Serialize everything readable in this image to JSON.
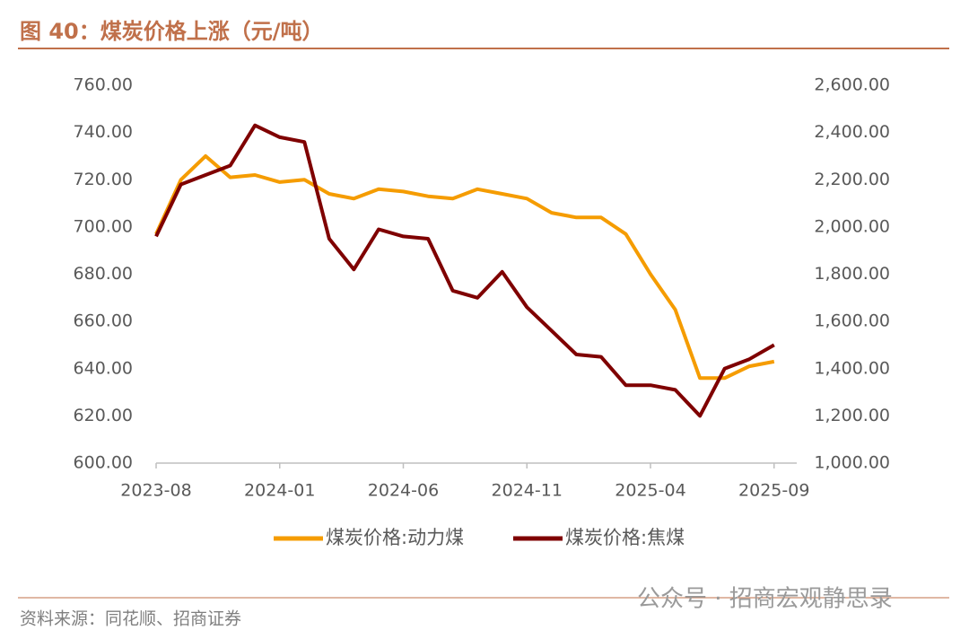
{
  "chart_data": {
    "type": "line",
    "title": "图 40：煤炭价格上涨（元/吨）",
    "source": "资料来源：同花顺、招商证券",
    "watermark": "公众号 · 招商宏观静思录",
    "x": [
      "2023-08",
      "2023-09",
      "2023-10",
      "2023-11",
      "2023-12",
      "2024-01",
      "2024-02",
      "2024-03",
      "2024-04",
      "2024-05",
      "2024-06",
      "2024-07",
      "2024-08",
      "2024-09",
      "2024-10",
      "2024-11",
      "2024-12",
      "2025-01",
      "2025-02",
      "2025-03",
      "2025-04",
      "2025-05",
      "2025-06",
      "2025-07",
      "2025-08",
      "2025-09"
    ],
    "xticks": [
      "2023-08",
      "2024-01",
      "2024-06",
      "2024-11",
      "2025-04",
      "2025-09"
    ],
    "series": [
      {
        "name": "煤炭价格:动力煤",
        "color": "#f59c00",
        "axis": "y",
        "values": [
          697,
          720,
          730,
          721,
          722,
          719,
          720,
          714,
          712,
          716,
          715,
          713,
          712,
          716,
          714,
          712,
          706,
          704,
          704,
          697,
          680,
          665,
          636,
          636,
          641,
          643
        ]
      },
      {
        "name": "煤炭价格:焦煤",
        "color": "#7f0000",
        "axis": "y2",
        "values": [
          1960,
          2180,
          2220,
          2260,
          2430,
          2380,
          2360,
          1950,
          1820,
          1990,
          1960,
          1950,
          1730,
          1700,
          1810,
          1660,
          1560,
          1460,
          1450,
          1330,
          1330,
          1310,
          1200,
          1400,
          1440,
          1500
        ]
      }
    ],
    "ylim": [
      600,
      760
    ],
    "yticks": [
      {
        "value": 600,
        "label": "600.00"
      },
      {
        "value": 620,
        "label": "620.00"
      },
      {
        "value": 640,
        "label": "640.00"
      },
      {
        "value": 660,
        "label": "660.00"
      },
      {
        "value": 680,
        "label": "680.00"
      },
      {
        "value": 700,
        "label": "700.00"
      },
      {
        "value": 720,
        "label": "720.00"
      },
      {
        "value": 740,
        "label": "740.00"
      },
      {
        "value": 760,
        "label": "760.00"
      }
    ],
    "y2lim": [
      1000,
      2600
    ],
    "y2ticks": [
      {
        "value": 1000,
        "label": "1,000.00"
      },
      {
        "value": 1200,
        "label": "1,200.00"
      },
      {
        "value": 1400,
        "label": "1,400.00"
      },
      {
        "value": 1600,
        "label": "1,600.00"
      },
      {
        "value": 1800,
        "label": "1,800.00"
      },
      {
        "value": 2000,
        "label": "2,000.00"
      },
      {
        "value": 2200,
        "label": "2,200.00"
      },
      {
        "value": 2400,
        "label": "2,400.00"
      },
      {
        "value": 2600,
        "label": "2,600.00"
      }
    ],
    "legend": "bottom"
  }
}
